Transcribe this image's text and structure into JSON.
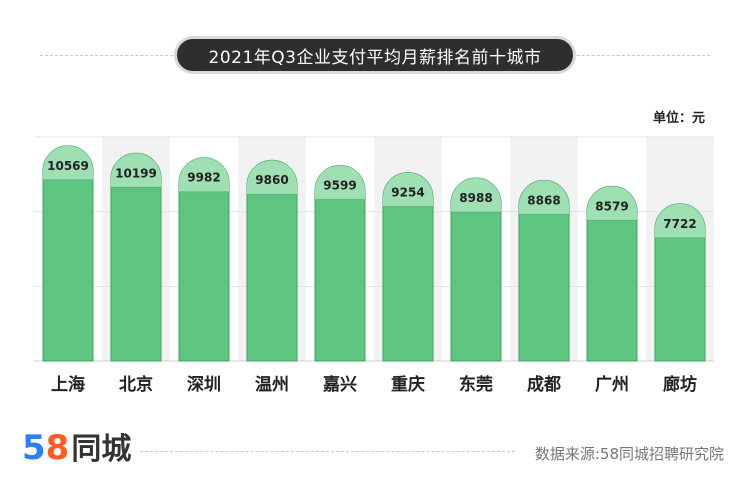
{
  "title": "2021年Q3企业支付平均月薪排名前十城市",
  "unit_label": "单位：元",
  "source": "数据来源:58同城招聘研究院",
  "logo": {
    "digit5": "5",
    "digit8": "8",
    "text": "同城"
  },
  "colors": {
    "bar": "#5dc57f",
    "bar_cap": "#9ee0b3",
    "bar_outline": "#3fa35f",
    "panel_alt": "#f2f2f2",
    "title_bg": "#2e2e2e",
    "logo_blue": "#2d7ff9",
    "logo_orange": "#ff5a1f"
  },
  "chart_data": {
    "type": "bar",
    "categories": [
      "上海",
      "北京",
      "深圳",
      "温州",
      "嘉兴",
      "重庆",
      "东莞",
      "成都",
      "广州",
      "廊坊"
    ],
    "values": [
      10569,
      10199,
      9982,
      9860,
      9599,
      9254,
      8988,
      8868,
      8579,
      7722
    ],
    "data_labels": [
      "10569",
      "10199",
      "9982",
      "9860",
      "9599",
      "9254",
      "8988",
      "8868",
      "8579",
      "7722"
    ],
    "ylim": [
      0,
      11000
    ],
    "grid": true,
    "title": "2021年Q3企业支付平均月薪排名前十城市",
    "ylabel": "单位：元"
  }
}
